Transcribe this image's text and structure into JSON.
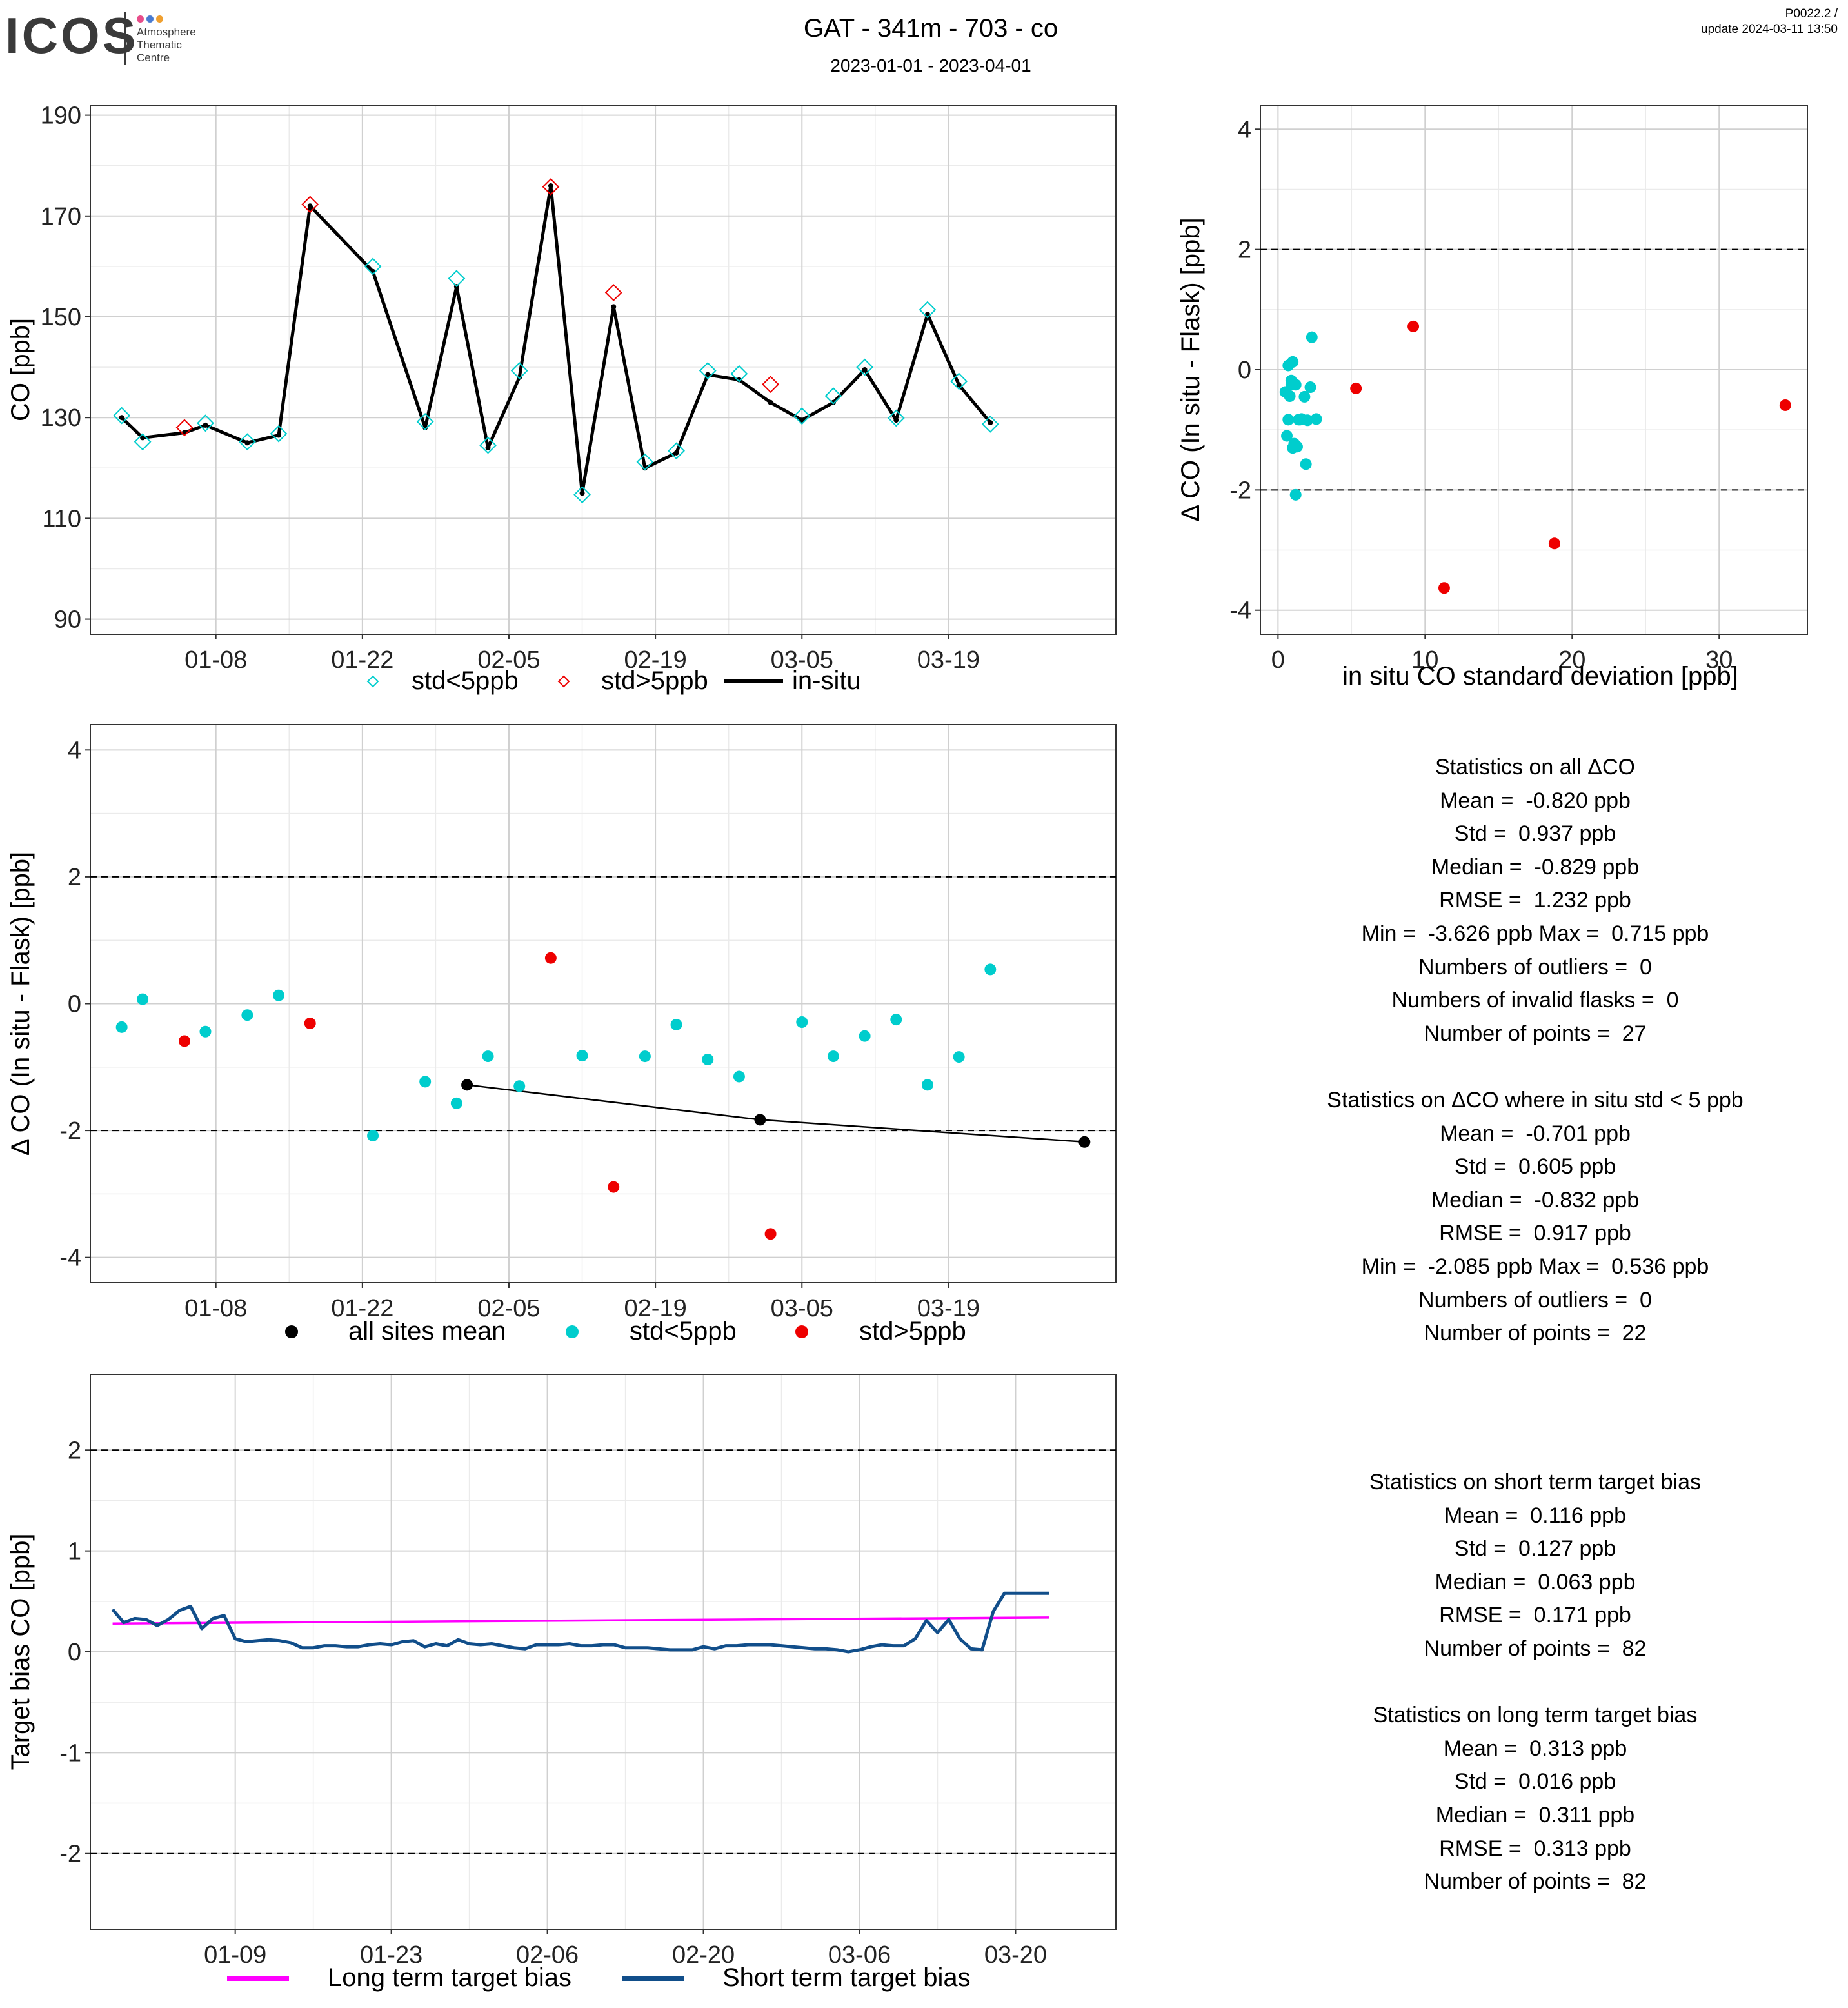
{
  "header": {
    "logo_text": "ICOS",
    "logo_subtitle": [
      "Atmosphere",
      "Thematic",
      "Centre"
    ],
    "logo_dot_colors": [
      "#e84d8a",
      "#4a7bd0",
      "#f0a030"
    ],
    "title": "GAT - 341m - 703 - co",
    "subtitle": "2023-01-01 - 2023-04-01",
    "version": "P0022.2 /",
    "update": "update  2024-03-11 13:50"
  },
  "colors": {
    "cyan": "#00CDCD",
    "red": "#EE0000",
    "black": "#000000",
    "magenta": "#FF00FF",
    "navy": "#114E8A"
  },
  "chart_data": [
    {
      "type": "line",
      "id": "co-timeseries",
      "ylabel": "CO [ppb]",
      "xlim": [
        -5,
        93
      ],
      "ylim": [
        87,
        192
      ],
      "yticks": [
        90,
        110,
        130,
        150,
        170,
        190
      ],
      "xticks": [
        {
          "x": 7,
          "label": "01-08"
        },
        {
          "x": 21,
          "label": "01-22"
        },
        {
          "x": 35,
          "label": "02-05"
        },
        {
          "x": 49,
          "label": "02-19"
        },
        {
          "x": 63,
          "label": "03-05"
        },
        {
          "x": 77,
          "label": "03-19"
        }
      ],
      "legend_position": "bottom",
      "legend": [
        "std<5ppb",
        "std>5ppb",
        "in-situ"
      ],
      "x_note": "x = days after 2023-01-01",
      "in_situ": {
        "x": [
          -2,
          0,
          4,
          6,
          10,
          13,
          16,
          22,
          27,
          30,
          33,
          36,
          39,
          42,
          45,
          48,
          51,
          54,
          57,
          60,
          63,
          66,
          69,
          72,
          75,
          78,
          81
        ],
        "y": [
          130,
          126,
          127,
          128.5,
          125,
          126.5,
          172,
          159,
          128,
          156,
          124,
          138,
          176,
          115,
          152,
          120,
          123,
          138.5,
          137.5,
          133,
          129.5,
          133,
          139.5,
          129.5,
          150.5,
          136.5,
          129
        ]
      },
      "flask": {
        "x": [
          -2,
          0,
          4,
          6,
          10,
          13,
          16,
          22,
          27,
          30,
          33,
          36,
          39,
          42,
          45,
          48,
          51,
          54,
          57,
          60,
          63,
          66,
          69,
          72,
          75,
          78,
          81
        ],
        "y": [
          130.4,
          125.2,
          128.0,
          128.9,
          125.2,
          126.8,
          172.3,
          160.0,
          129.2,
          157.6,
          124.5,
          139.3,
          175.8,
          114.7,
          154.8,
          121.2,
          123.4,
          139.3,
          138.7,
          136.6,
          130.3,
          134.3,
          140.0,
          129.9,
          151.4,
          137.2,
          128.7
        ],
        "std_gt5": [
          false,
          false,
          true,
          false,
          false,
          false,
          true,
          false,
          false,
          false,
          false,
          false,
          true,
          false,
          true,
          false,
          false,
          false,
          false,
          true,
          false,
          false,
          false,
          false,
          false,
          false,
          false
        ]
      }
    },
    {
      "type": "scatter",
      "id": "delta-vs-std",
      "xlabel": "in situ CO standard deviation [ppb]",
      "ylabel": "Δ CO (In situ - Flask) [ppb]",
      "xlim": [
        -1.2,
        36
      ],
      "ylim": [
        -4.4,
        4.4
      ],
      "xticks": [
        0,
        10,
        20,
        30
      ],
      "yticks": [
        -4,
        -2,
        0,
        2,
        4
      ],
      "hlines": [
        -2,
        2
      ],
      "points_low_std": {
        "x": [
          0.5,
          0.7,
          0.8,
          0.9,
          1.0,
          1.1,
          1.2,
          1.3,
          1.5,
          1.6,
          1.8,
          2.0,
          2.2,
          2.6,
          0.6,
          0.9,
          1.2,
          1.4,
          1.9,
          2.3,
          0.7,
          1.0
        ],
        "y": [
          -0.37,
          0.07,
          -0.44,
          -0.18,
          0.13,
          -1.23,
          -2.08,
          -1.28,
          -0.83,
          -0.82,
          -0.45,
          -0.84,
          -0.29,
          -0.82,
          -1.1,
          -0.25,
          -0.25,
          -0.83,
          -1.57,
          0.54,
          -0.83,
          -1.3
        ]
      },
      "points_high_std": {
        "x": [
          5.3,
          9.2,
          11.3,
          18.8,
          34.5
        ],
        "y": [
          -0.31,
          0.72,
          -3.63,
          -2.89,
          -0.59
        ]
      }
    },
    {
      "type": "scatter",
      "id": "delta-timeseries",
      "ylabel": "Δ CO (In situ - Flask) [ppb]",
      "xlim": [
        -5,
        93
      ],
      "ylim": [
        -4.4,
        4.4
      ],
      "yticks": [
        -4,
        -2,
        0,
        2,
        4
      ],
      "hlines": [
        -2,
        2
      ],
      "xticks": [
        {
          "x": 7,
          "label": "01-08"
        },
        {
          "x": 21,
          "label": "01-22"
        },
        {
          "x": 35,
          "label": "02-05"
        },
        {
          "x": 49,
          "label": "02-19"
        },
        {
          "x": 63,
          "label": "03-05"
        },
        {
          "x": 77,
          "label": "03-19"
        }
      ],
      "legend_position": "bottom",
      "legend": [
        "all sites mean",
        "std<5ppb",
        "std>5ppb"
      ],
      "points": {
        "x": [
          -2,
          0,
          4,
          6,
          10,
          13,
          16,
          22,
          27,
          30,
          33,
          36,
          39,
          42,
          45,
          48,
          51,
          54,
          57,
          60,
          63,
          66,
          69,
          72,
          75,
          78,
          81
        ],
        "y": [
          -0.37,
          0.07,
          -0.59,
          -0.44,
          -0.18,
          0.13,
          -0.31,
          -2.08,
          -1.23,
          -1.57,
          -0.83,
          -1.3,
          0.72,
          -0.82,
          -2.89,
          -0.83,
          -0.33,
          -0.88,
          -1.15,
          -3.63,
          -0.29,
          -0.83,
          -0.51,
          -0.25,
          -1.28,
          -0.84,
          0.54
        ],
        "std_gt5": [
          false,
          false,
          true,
          false,
          false,
          false,
          true,
          false,
          false,
          false,
          false,
          false,
          true,
          false,
          true,
          false,
          false,
          false,
          false,
          true,
          false,
          false,
          false,
          false,
          false,
          false,
          false
        ]
      },
      "all_sites_mean": {
        "x": [
          31,
          59,
          90
        ],
        "y": [
          -1.28,
          -1.83,
          -2.18
        ]
      }
    },
    {
      "type": "line",
      "id": "target-bias",
      "ylabel": "Target bias CO [ppb]",
      "xlim": [
        -5,
        87
      ],
      "ylim": [
        -2.75,
        2.75
      ],
      "yticks": [
        -2,
        -1,
        0,
        1,
        2
      ],
      "hlines": [
        -2,
        2
      ],
      "xticks": [
        {
          "x": 8,
          "label": "01-09"
        },
        {
          "x": 22,
          "label": "01-23"
        },
        {
          "x": 36,
          "label": "02-06"
        },
        {
          "x": 50,
          "label": "02-20"
        },
        {
          "x": 64,
          "label": "03-06"
        },
        {
          "x": 78,
          "label": "03-20"
        }
      ],
      "legend_position": "bottom",
      "series": [
        {
          "name": "Long term target bias",
          "x": [
            -3,
            81
          ],
          "y": [
            0.28,
            0.34
          ]
        },
        {
          "name": "Short term target bias",
          "x": [
            -3,
            -2,
            -1,
            0,
            1,
            2,
            3,
            4,
            5,
            6,
            7,
            8,
            9,
            10,
            11,
            12,
            13,
            14,
            15,
            16,
            17,
            18,
            19,
            20,
            21,
            22,
            23,
            24,
            25,
            26,
            27,
            28,
            29,
            30,
            31,
            32,
            33,
            34,
            35,
            36,
            37,
            38,
            39,
            40,
            41,
            42,
            43,
            44,
            45,
            46,
            47,
            48,
            49,
            50,
            51,
            52,
            53,
            54,
            55,
            56,
            57,
            58,
            59,
            60,
            61,
            62,
            63,
            64,
            65,
            66,
            67,
            68,
            69,
            70,
            71,
            72,
            73,
            74,
            75,
            76,
            77,
            78,
            79,
            80,
            81
          ],
          "y": [
            0.42,
            0.29,
            0.33,
            0.32,
            0.26,
            0.32,
            0.41,
            0.45,
            0.23,
            0.33,
            0.36,
            0.13,
            0.1,
            0.11,
            0.12,
            0.11,
            0.09,
            0.04,
            0.04,
            0.06,
            0.06,
            0.05,
            0.05,
            0.07,
            0.08,
            0.07,
            0.1,
            0.11,
            0.05,
            0.08,
            0.06,
            0.12,
            0.08,
            0.07,
            0.08,
            0.06,
            0.04,
            0.03,
            0.07,
            0.07,
            0.07,
            0.08,
            0.06,
            0.06,
            0.07,
            0.07,
            0.04,
            0.04,
            0.04,
            0.03,
            0.02,
            0.02,
            0.02,
            0.05,
            0.03,
            0.06,
            0.06,
            0.07,
            0.07,
            0.07,
            0.06,
            0.05,
            0.04,
            0.03,
            0.03,
            0.02,
            0.0,
            0.02,
            0.05,
            0.07,
            0.06,
            0.06,
            0.13,
            0.31,
            0.19,
            0.32,
            0.13,
            0.03,
            0.02,
            0.4,
            0.58,
            0.58,
            0.58,
            0.58,
            0.58
          ]
        }
      ]
    }
  ],
  "stats_all": [
    "Statistics on all ΔCO",
    "Mean =  -0.820 ppb",
    "Std =  0.937 ppb",
    "Median =  -0.829 ppb",
    "RMSE =  1.232 ppb",
    "Min =  -3.626 ppb Max =  0.715 ppb",
    "Numbers of outliers =  0",
    "Numbers of invalid flasks =  0",
    "Number of points =  27",
    "",
    "Statistics on ΔCO where in situ std < 5 ppb",
    "Mean =  -0.701 ppb",
    "Std =  0.605 ppb",
    "Median =  -0.832 ppb",
    "RMSE =  0.917 ppb",
    "Min =  -2.085 ppb Max =  0.536 ppb",
    "Numbers of outliers =  0",
    "Number of points =  22"
  ],
  "stats_target": [
    "Statistics on short term target bias",
    "Mean =  0.116 ppb",
    "Std =  0.127 ppb",
    "Median =  0.063 ppb",
    "RMSE =  0.171 ppb",
    "Number of points =  82",
    "",
    "Statistics on long term target bias",
    "Mean =  0.313 ppb",
    "Std =  0.016 ppb",
    "Median =  0.311 ppb",
    "RMSE =  0.313 ppb",
    "Number of points =  82"
  ]
}
